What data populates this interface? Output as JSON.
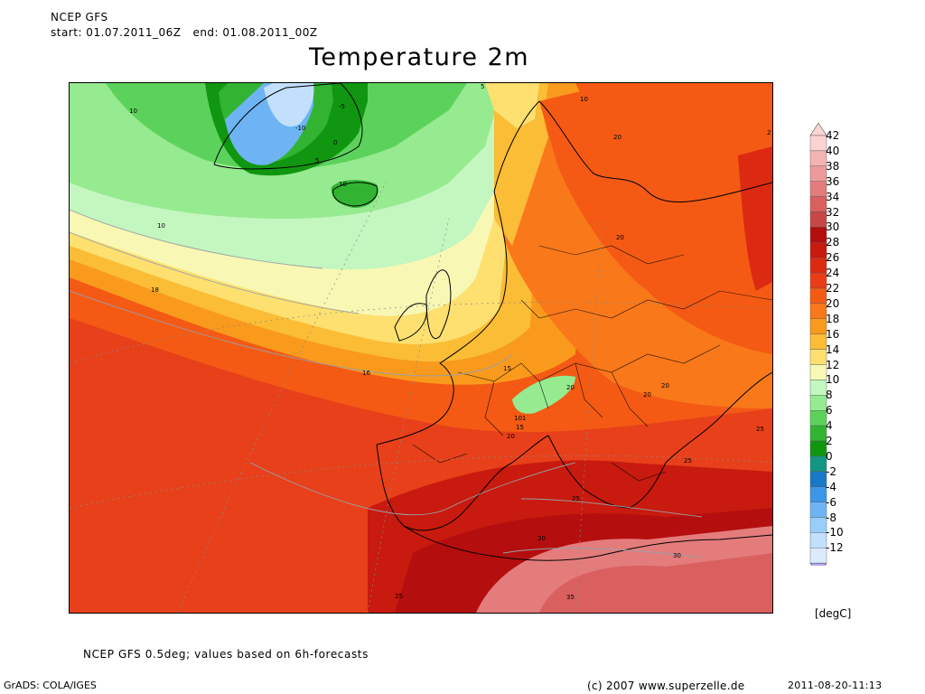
{
  "header": {
    "source": "NCEP GFS",
    "period": "start: 01.07.2011_06Z   end: 01.08.2011_00Z",
    "title": "Temperature 2m"
  },
  "legend": {
    "unit": "[degC]",
    "ticks": [
      "42",
      "40",
      "38",
      "36",
      "34",
      "32",
      "30",
      "28",
      "26",
      "24",
      "22",
      "20",
      "18",
      "16",
      "14",
      "12",
      "10",
      "8",
      "6",
      "4",
      "2",
      "0",
      "-2",
      "-4",
      "-6",
      "-8",
      "-10",
      "-12"
    ],
    "colors": [
      "#fbd3d3",
      "#f4b3b3",
      "#ec9a9a",
      "#e47c7c",
      "#da6060",
      "#c84646",
      "#b40e0e",
      "#c81a0e",
      "#dc2a12",
      "#ea3c16",
      "#f45a14",
      "#f8781a",
      "#f99a1c",
      "#fbbc36",
      "#fde070",
      "#f8f8b4",
      "#c4f6c0",
      "#96ea90",
      "#5cd25c",
      "#32b432",
      "#109610",
      "#149684",
      "#1a78c8",
      "#3a96ea",
      "#6eb4f4",
      "#98cefa",
      "#c2e0fc",
      "#dceafe"
    ]
  },
  "map_labels": [
    {
      "text": "5"
    },
    {
      "text": "10"
    },
    {
      "text": "-5"
    },
    {
      "text": "-10"
    },
    {
      "text": "0"
    },
    {
      "text": "5"
    },
    {
      "text": "10"
    },
    {
      "text": "10"
    },
    {
      "text": "10"
    },
    {
      "text": "18"
    },
    {
      "text": "16"
    },
    {
      "text": "15"
    },
    {
      "text": "20"
    },
    {
      "text": "20"
    },
    {
      "text": "20"
    },
    {
      "text": "20"
    },
    {
      "text": "20"
    },
    {
      "text": "101"
    },
    {
      "text": "15"
    },
    {
      "text": "20"
    },
    {
      "text": "25"
    },
    {
      "text": "25"
    },
    {
      "text": "25"
    },
    {
      "text": "30"
    },
    {
      "text": "30"
    },
    {
      "text": "35"
    },
    {
      "text": "25"
    },
    {
      "text": "2"
    }
  ],
  "footer": {
    "note": "NCEP GFS 0.5deg; values based on 6h-forecasts",
    "engine": "GrADS: COLA/IGES",
    "copyright": "(c) 2007 www.superzelle.de",
    "timestamp": "2011-08-20-11:13"
  }
}
